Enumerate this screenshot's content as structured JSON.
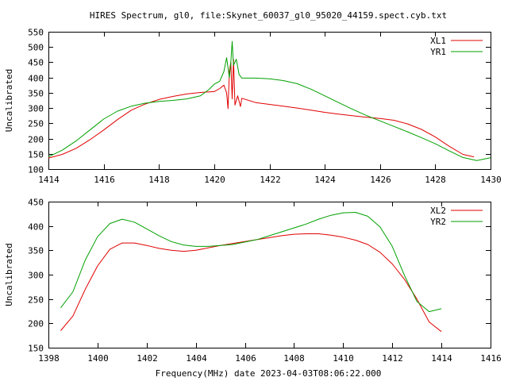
{
  "page": {
    "title": "HIRES Spectrum, gl0, file:Skynet_60037_gl0_95020_44159.spect.cyb.txt",
    "xlabel": "Frequency(MHz) date 2023-04-03T08:06:22.000"
  },
  "chart_data": [
    {
      "type": "line",
      "ylabel": "Uncalibrated",
      "xlim": [
        1414,
        1430
      ],
      "ylim": [
        100,
        550
      ],
      "xticks": [
        1414,
        1416,
        1418,
        1420,
        1422,
        1424,
        1426,
        1428,
        1430
      ],
      "yticks": [
        100,
        150,
        200,
        250,
        300,
        350,
        400,
        450,
        500,
        550
      ],
      "legend": "top-right",
      "grid": false,
      "series": [
        {
          "name": "XL1",
          "color": "#e00000",
          "points": [
            [
              1414.0,
              136
            ],
            [
              1414.5,
              148
            ],
            [
              1415.0,
              168
            ],
            [
              1415.5,
              196
            ],
            [
              1416.0,
              228
            ],
            [
              1416.5,
              262
            ],
            [
              1417.0,
              293
            ],
            [
              1417.5,
              313
            ],
            [
              1418.0,
              328
            ],
            [
              1418.5,
              338
            ],
            [
              1419.0,
              346
            ],
            [
              1419.5,
              351
            ],
            [
              1420.0,
              354
            ],
            [
              1420.2,
              364
            ],
            [
              1420.35,
              375
            ],
            [
              1420.45,
              350
            ],
            [
              1420.5,
              298
            ],
            [
              1420.55,
              420
            ],
            [
              1420.6,
              450
            ],
            [
              1420.65,
              330
            ],
            [
              1420.7,
              460
            ],
            [
              1420.75,
              310
            ],
            [
              1420.85,
              340
            ],
            [
              1420.95,
              305
            ],
            [
              1421.0,
              332
            ],
            [
              1421.5,
              318
            ],
            [
              1422.0,
              312
            ],
            [
              1422.5,
              306
            ],
            [
              1423.0,
              300
            ],
            [
              1423.5,
              293
            ],
            [
              1424.0,
              286
            ],
            [
              1424.5,
              280
            ],
            [
              1425.0,
              275
            ],
            [
              1425.5,
              270
            ],
            [
              1426.0,
              266
            ],
            [
              1426.5,
              260
            ],
            [
              1427.0,
              248
            ],
            [
              1427.5,
              230
            ],
            [
              1428.0,
              205
            ],
            [
              1428.5,
              175
            ],
            [
              1429.0,
              148
            ],
            [
              1429.4,
              140
            ]
          ]
        },
        {
          "name": "YR1",
          "color": "#00a000",
          "points": [
            [
              1414.0,
              140
            ],
            [
              1414.5,
              162
            ],
            [
              1415.0,
              192
            ],
            [
              1415.5,
              228
            ],
            [
              1416.0,
              264
            ],
            [
              1416.5,
              290
            ],
            [
              1417.0,
              306
            ],
            [
              1417.5,
              316
            ],
            [
              1418.0,
              322
            ],
            [
              1418.5,
              325
            ],
            [
              1419.0,
              330
            ],
            [
              1419.5,
              340
            ],
            [
              1419.8,
              360
            ],
            [
              1420.0,
              378
            ],
            [
              1420.2,
              388
            ],
            [
              1420.35,
              420
            ],
            [
              1420.45,
              465
            ],
            [
              1420.55,
              400
            ],
            [
              1420.6,
              450
            ],
            [
              1420.65,
              518
            ],
            [
              1420.7,
              440
            ],
            [
              1420.8,
              460
            ],
            [
              1420.9,
              410
            ],
            [
              1421.0,
              398
            ],
            [
              1421.5,
              398
            ],
            [
              1422.0,
              396
            ],
            [
              1422.5,
              390
            ],
            [
              1423.0,
              380
            ],
            [
              1423.5,
              362
            ],
            [
              1424.0,
              340
            ],
            [
              1424.5,
              318
            ],
            [
              1425.0,
              296
            ],
            [
              1425.5,
              276
            ],
            [
              1426.0,
              258
            ],
            [
              1426.5,
              240
            ],
            [
              1427.0,
              222
            ],
            [
              1427.5,
              203
            ],
            [
              1428.0,
              183
            ],
            [
              1428.5,
              160
            ],
            [
              1429.0,
              138
            ],
            [
              1429.5,
              128
            ],
            [
              1430.0,
              137
            ]
          ]
        }
      ]
    },
    {
      "type": "line",
      "ylabel": "Uncalibrated",
      "xlim": [
        1398,
        1416
      ],
      "ylim": [
        150,
        450
      ],
      "xticks": [
        1398,
        1400,
        1402,
        1404,
        1406,
        1408,
        1410,
        1412,
        1414,
        1416
      ],
      "yticks": [
        150,
        200,
        250,
        300,
        350,
        400,
        450
      ],
      "legend": "top-right",
      "grid": false,
      "series": [
        {
          "name": "XL2",
          "color": "#e00000",
          "points": [
            [
              1398.5,
              185
            ],
            [
              1399.0,
              215
            ],
            [
              1399.5,
              270
            ],
            [
              1400.0,
              318
            ],
            [
              1400.5,
              352
            ],
            [
              1401.0,
              365
            ],
            [
              1401.5,
              365
            ],
            [
              1402.0,
              360
            ],
            [
              1402.5,
              354
            ],
            [
              1403.0,
              350
            ],
            [
              1403.5,
              348
            ],
            [
              1404.0,
              350
            ],
            [
              1404.5,
              355
            ],
            [
              1405.0,
              360
            ],
            [
              1405.5,
              364
            ],
            [
              1406.0,
              368
            ],
            [
              1406.5,
              372
            ],
            [
              1407.0,
              376
            ],
            [
              1407.5,
              380
            ],
            [
              1408.0,
              383
            ],
            [
              1408.5,
              384
            ],
            [
              1409.0,
              384
            ],
            [
              1409.5,
              381
            ],
            [
              1410.0,
              377
            ],
            [
              1410.5,
              371
            ],
            [
              1411.0,
              362
            ],
            [
              1411.5,
              346
            ],
            [
              1412.0,
              322
            ],
            [
              1412.5,
              290
            ],
            [
              1413.0,
              250
            ],
            [
              1413.5,
              203
            ],
            [
              1414.0,
              183
            ]
          ]
        },
        {
          "name": "YR2",
          "color": "#00a000",
          "points": [
            [
              1398.5,
              232
            ],
            [
              1399.0,
              265
            ],
            [
              1399.5,
              330
            ],
            [
              1400.0,
              378
            ],
            [
              1400.5,
              405
            ],
            [
              1401.0,
              414
            ],
            [
              1401.5,
              408
            ],
            [
              1402.0,
              394
            ],
            [
              1402.5,
              380
            ],
            [
              1403.0,
              368
            ],
            [
              1403.5,
              361
            ],
            [
              1404.0,
              358
            ],
            [
              1404.5,
              358
            ],
            [
              1405.0,
              360
            ],
            [
              1405.5,
              362
            ],
            [
              1406.0,
              367
            ],
            [
              1406.5,
              372
            ],
            [
              1407.0,
              380
            ],
            [
              1407.5,
              388
            ],
            [
              1408.0,
              396
            ],
            [
              1408.5,
              404
            ],
            [
              1409.0,
              414
            ],
            [
              1409.5,
              422
            ],
            [
              1410.0,
              427
            ],
            [
              1410.5,
              428
            ],
            [
              1411.0,
              420
            ],
            [
              1411.5,
              398
            ],
            [
              1412.0,
              358
            ],
            [
              1412.5,
              298
            ],
            [
              1413.0,
              245
            ],
            [
              1413.5,
              224
            ],
            [
              1414.0,
              230
            ]
          ]
        }
      ]
    }
  ]
}
